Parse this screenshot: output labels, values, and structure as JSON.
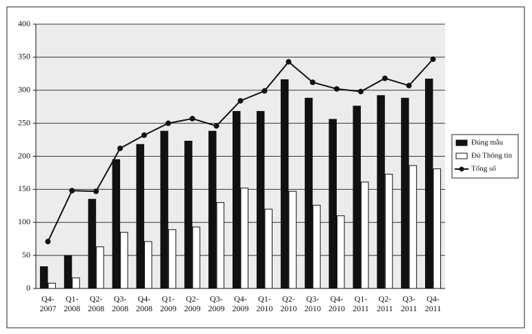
{
  "chart_data": {
    "type": "combo",
    "categories": [
      "Q4-2007",
      "Q1-2008",
      "Q2-2008",
      "Q3-2008",
      "Q4-2008",
      "Q1-2009",
      "Q2-2009",
      "Q3-2009",
      "Q4-2009",
      "Q1-2010",
      "Q2-2010",
      "Q3-2010",
      "Q4-2010",
      "Q1-2011",
      "Q2-2011",
      "Q3-2011",
      "Q4-2011"
    ],
    "series": [
      {
        "name": "Đúng mẫu",
        "type": "bar",
        "color": "#111111",
        "values": [
          33,
          50,
          135,
          195,
          218,
          238,
          223,
          238,
          268,
          268,
          316,
          288,
          256,
          276,
          292,
          288,
          317
        ]
      },
      {
        "name": "Đủ Thông tin",
        "type": "bar",
        "color": "#ffffff",
        "values": [
          8,
          16,
          63,
          85,
          71,
          89,
          93,
          130,
          152,
          120,
          147,
          126,
          110,
          161,
          173,
          186,
          181
        ]
      },
      {
        "name": "Tổng số",
        "type": "line",
        "color": "#111111",
        "values": [
          71,
          148,
          147,
          212,
          232,
          250,
          257,
          246,
          284,
          299,
          343,
          312,
          302,
          298,
          318,
          307,
          347
        ]
      }
    ],
    "ylim": [
      0,
      400
    ],
    "yticks": [
      0,
      50,
      100,
      150,
      200,
      250,
      300,
      350,
      400
    ],
    "grid": true,
    "legend": "right"
  }
}
